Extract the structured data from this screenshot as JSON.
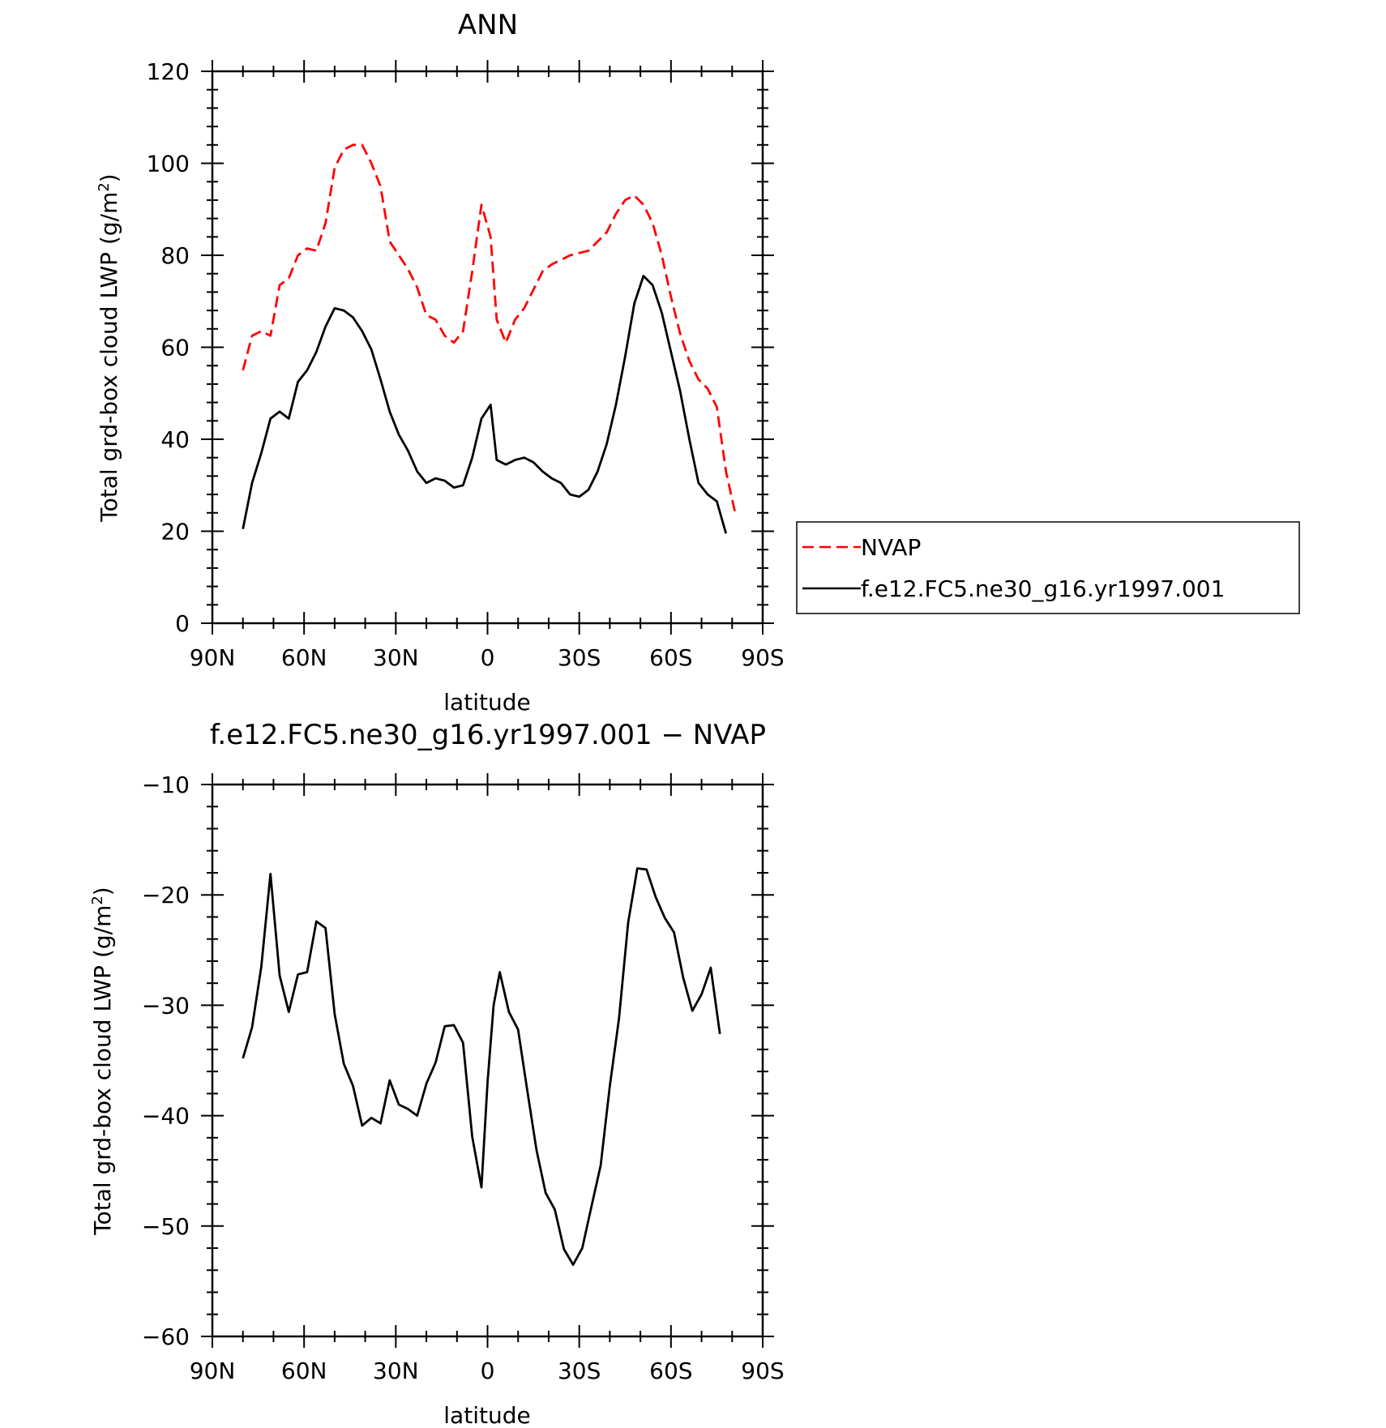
{
  "chart_data": [
    {
      "type": "line",
      "title": "ANN",
      "xlabel": "latitude",
      "ylabel": "Total grd-box cloud LWP (g/m",
      "ylabel_sup": "2",
      "ylabel_close": ")",
      "xlim": [
        -90,
        90
      ],
      "ylim": [
        0,
        120
      ],
      "x_ticks": [
        -90,
        -60,
        -30,
        0,
        30,
        60,
        90
      ],
      "x_tick_labels": [
        "90N",
        "60N",
        "30N",
        "0",
        "30S",
        "60S",
        "90S"
      ],
      "y_ticks": [
        0,
        20,
        40,
        60,
        80,
        100,
        120
      ],
      "y_tick_labels": [
        "0",
        "20",
        "40",
        "60",
        "80",
        "100",
        "120"
      ],
      "legend_position": "right",
      "series": [
        {
          "name": "NVAP",
          "color": "#ff0000",
          "dash": "dashed",
          "points": [
            [
              -80,
              55
            ],
            [
              -77,
              62.5
            ],
            [
              -74,
              63.5
            ],
            [
              -71,
              62.5
            ],
            [
              -68,
              73.5
            ],
            [
              -65,
              75
            ],
            [
              -62,
              80
            ],
            [
              -59,
              81.5
            ],
            [
              -56,
              81
            ],
            [
              -53,
              87
            ],
            [
              -50,
              99
            ],
            [
              -47,
              103
            ],
            [
              -44,
              104
            ],
            [
              -41,
              104
            ],
            [
              -38,
              100
            ],
            [
              -35,
              95
            ],
            [
              -32,
              83
            ],
            [
              -29,
              80
            ],
            [
              -26,
              77
            ],
            [
              -23,
              73
            ],
            [
              -20,
              67
            ],
            [
              -17,
              66
            ],
            [
              -14,
              62.5
            ],
            [
              -11,
              61
            ],
            [
              -8,
              63.5
            ],
            [
              -5,
              76.5
            ],
            [
              -2,
              91
            ],
            [
              1,
              84
            ],
            [
              3,
              66
            ],
            [
              6,
              61
            ],
            [
              9,
              66
            ],
            [
              12,
              68.5
            ],
            [
              15,
              72.5
            ],
            [
              18,
              76.5
            ],
            [
              21,
              78
            ],
            [
              24,
              79
            ],
            [
              27,
              80
            ],
            [
              30,
              80.5
            ],
            [
              33,
              81
            ],
            [
              36,
              83
            ],
            [
              39,
              85
            ],
            [
              42,
              89
            ],
            [
              45,
              92
            ],
            [
              48,
              93
            ],
            [
              51,
              91
            ],
            [
              54,
              87
            ],
            [
              57,
              80
            ],
            [
              60,
              71
            ],
            [
              63,
              63
            ],
            [
              66,
              57
            ],
            [
              69,
              53
            ],
            [
              72,
              51
            ],
            [
              75,
              47
            ],
            [
              78,
              33
            ],
            [
              81,
              24
            ]
          ]
        },
        {
          "name": "f.e12.FC5.ne30_g16.yr1997.001",
          "color": "#000000",
          "dash": "solid",
          "points": [
            [
              -80,
              20.5
            ],
            [
              -77,
              30.5
            ],
            [
              -74,
              37
            ],
            [
              -71,
              44.5
            ],
            [
              -68,
              46
            ],
            [
              -65,
              44.5
            ],
            [
              -62,
              52.5
            ],
            [
              -59,
              55
            ],
            [
              -56,
              59
            ],
            [
              -53,
              64.5
            ],
            [
              -50,
              68.5
            ],
            [
              -47,
              68
            ],
            [
              -44,
              66.5
            ],
            [
              -41,
              63.5
            ],
            [
              -38,
              59.5
            ],
            [
              -35,
              53
            ],
            [
              -32,
              46
            ],
            [
              -29,
              41
            ],
            [
              -26,
              37.5
            ],
            [
              -23,
              33
            ],
            [
              -20,
              30.5
            ],
            [
              -17,
              31.5
            ],
            [
              -14,
              31
            ],
            [
              -11,
              29.5
            ],
            [
              -8,
              30
            ],
            [
              -5,
              36
            ],
            [
              -2,
              44.5
            ],
            [
              1,
              47.5
            ],
            [
              3,
              35.5
            ],
            [
              6,
              34.5
            ],
            [
              9,
              35.5
            ],
            [
              12,
              36
            ],
            [
              15,
              35
            ],
            [
              18,
              33
            ],
            [
              21,
              31.5
            ],
            [
              24,
              30.5
            ],
            [
              27,
              28
            ],
            [
              30,
              27.5
            ],
            [
              33,
              29
            ],
            [
              36,
              33
            ],
            [
              39,
              39
            ],
            [
              42,
              47.5
            ],
            [
              45,
              58
            ],
            [
              48,
              69.5
            ],
            [
              51,
              75.5
            ],
            [
              54,
              73.5
            ],
            [
              57,
              67.5
            ],
            [
              60,
              59
            ],
            [
              63,
              50.5
            ],
            [
              66,
              40
            ],
            [
              69,
              30.5
            ],
            [
              72,
              28
            ],
            [
              75,
              26.5
            ],
            [
              78,
              19.5
            ]
          ]
        }
      ]
    },
    {
      "type": "line",
      "title": "f.e12.FC5.ne30_g16.yr1997.001 − NVAP",
      "xlabel": "latitude",
      "ylabel": "Total grd-box cloud LWP (g/m",
      "ylabel_sup": "2",
      "ylabel_close": ")",
      "xlim": [
        -90,
        90
      ],
      "ylim": [
        -60,
        -10
      ],
      "x_ticks": [
        -90,
        -60,
        -30,
        0,
        30,
        60,
        90
      ],
      "x_tick_labels": [
        "90N",
        "60N",
        "30N",
        "0",
        "30S",
        "60S",
        "90S"
      ],
      "y_ticks": [
        -60,
        -50,
        -40,
        -30,
        -20,
        -10
      ],
      "y_tick_labels": [
        "−60",
        "−50",
        "−40",
        "−30",
        "−20",
        "−10"
      ],
      "series": [
        {
          "color": "#000000",
          "dash": "solid",
          "points": [
            [
              -80,
              -34.8
            ],
            [
              -77,
              -32
            ],
            [
              -74,
              -26.5
            ],
            [
              -71,
              -18.1
            ],
            [
              -68,
              -27.3
            ],
            [
              -65,
              -30.6
            ],
            [
              -62,
              -27.2
            ],
            [
              -59,
              -27
            ],
            [
              -56,
              -22.4
            ],
            [
              -53,
              -23
            ],
            [
              -50,
              -30.8
            ],
            [
              -47,
              -35.3
            ],
            [
              -44,
              -37.3
            ],
            [
              -41,
              -40.9
            ],
            [
              -38,
              -40.2
            ],
            [
              -35,
              -40.7
            ],
            [
              -32,
              -36.8
            ],
            [
              -29,
              -39
            ],
            [
              -26,
              -39.4
            ],
            [
              -23,
              -40
            ],
            [
              -20,
              -37.1
            ],
            [
              -17,
              -35.2
            ],
            [
              -14,
              -31.9
            ],
            [
              -11,
              -31.8
            ],
            [
              -8,
              -33.4
            ],
            [
              -5,
              -41.9
            ],
            [
              -2,
              -46.5
            ],
            [
              0,
              -37
            ],
            [
              2,
              -30
            ],
            [
              4,
              -27
            ],
            [
              7,
              -30.6
            ],
            [
              10,
              -32.2
            ],
            [
              13,
              -37.7
            ],
            [
              16,
              -43.1
            ],
            [
              19,
              -47
            ],
            [
              22,
              -48.5
            ],
            [
              25,
              -52.1
            ],
            [
              28,
              -53.5
            ],
            [
              31,
              -52
            ],
            [
              34,
              -48.2
            ],
            [
              37,
              -44.5
            ],
            [
              40,
              -37.3
            ],
            [
              43,
              -31.2
            ],
            [
              46,
              -22.5
            ],
            [
              49,
              -17.6
            ],
            [
              52,
              -17.7
            ],
            [
              55,
              -20.2
            ],
            [
              58,
              -22.1
            ],
            [
              61,
              -23.4
            ],
            [
              64,
              -27.5
            ],
            [
              67,
              -30.5
            ],
            [
              70,
              -29
            ],
            [
              73,
              -26.6
            ],
            [
              76,
              -32.6
            ]
          ]
        }
      ]
    }
  ]
}
